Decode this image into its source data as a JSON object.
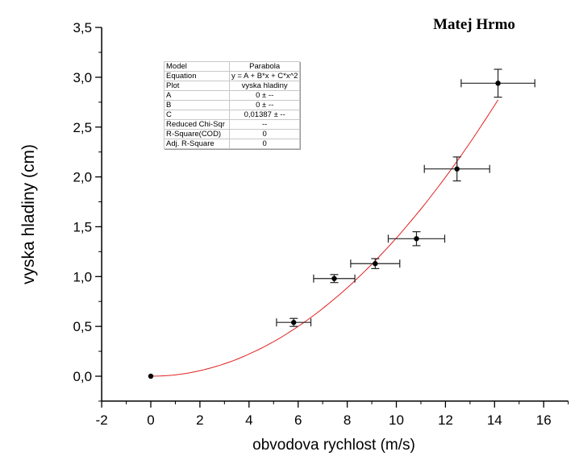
{
  "chart_data": {
    "type": "scatter",
    "author": "Matej Hrmo",
    "xlabel": "obvodova rychlost (m/s)",
    "ylabel": "vyska hladiny (cm)",
    "xlim": [
      -2,
      17
    ],
    "ylim": [
      -0.25,
      3.5
    ],
    "xticks": [
      -2,
      0,
      2,
      4,
      6,
      8,
      10,
      12,
      14,
      16
    ],
    "xtick_labels": [
      "-2",
      "0",
      "2",
      "4",
      "6",
      "8",
      "10",
      "12",
      "14",
      "16"
    ],
    "yticks": [
      0,
      0.5,
      1.0,
      1.5,
      2.0,
      2.5,
      3.0,
      3.5
    ],
    "ytick_labels": [
      "0,0",
      "0,5",
      "1,0",
      "1,5",
      "2,0",
      "2,5",
      "3,0",
      "3,5"
    ],
    "grid": false,
    "points": [
      {
        "x": 0,
        "y": 0,
        "xerr": 0,
        "yerr": 0
      },
      {
        "x": 5.82,
        "y": 0.54,
        "xerr": 0.7,
        "yerr": 0.04
      },
      {
        "x": 7.47,
        "y": 0.98,
        "xerr": 0.84,
        "yerr": 0.04
      },
      {
        "x": 9.14,
        "y": 1.13,
        "xerr": 1.0,
        "yerr": 0.05
      },
      {
        "x": 10.82,
        "y": 1.38,
        "xerr": 1.15,
        "yerr": 0.07
      },
      {
        "x": 12.47,
        "y": 2.08,
        "xerr": 1.33,
        "yerr": 0.12
      },
      {
        "x": 14.14,
        "y": 2.94,
        "xerr": 1.5,
        "yerr": 0.14
      }
    ],
    "fit": {
      "A": 0,
      "B": 0,
      "C": 0.01387,
      "x_range": [
        0,
        14.14
      ],
      "color": "#e02020"
    },
    "point_color": "#000000"
  },
  "stats_table": [
    {
      "key": "Model",
      "value": "Parabola"
    },
    {
      "key": "Equation",
      "value": "y = A + B*x + C*x^2"
    },
    {
      "key": "Plot",
      "value": "vyska hladiny"
    },
    {
      "key": "A",
      "value": "0 ± --"
    },
    {
      "key": "B",
      "value": "0 ± --"
    },
    {
      "key": "C",
      "value": "0,01387 ± --"
    },
    {
      "key": "Reduced Chi-Sqr",
      "value": "--"
    },
    {
      "key": "R-Square(COD)",
      "value": "0"
    },
    {
      "key": "Adj. R-Square",
      "value": "0"
    }
  ]
}
